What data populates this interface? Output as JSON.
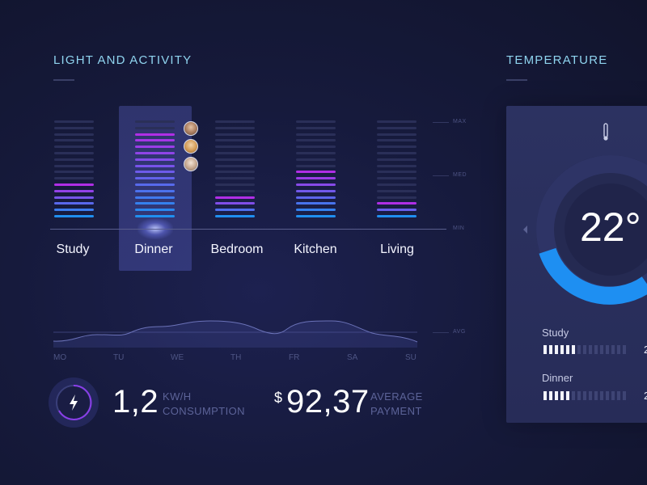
{
  "light_activity": {
    "title": "LIGHT AND ACTIVITY",
    "scale_labels": {
      "max": "MAX",
      "med": "MED",
      "min": "MIN",
      "avg": "AVG"
    },
    "rooms": [
      {
        "label": "Study",
        "active_bars": 6,
        "selected": false
      },
      {
        "label": "Dinner",
        "active_bars": 14,
        "selected": true,
        "occupant_avatars": 3
      },
      {
        "label": "Bedroom",
        "active_bars": 4,
        "selected": false
      },
      {
        "label": "Kitchen",
        "active_bars": 8,
        "selected": false
      },
      {
        "label": "Living",
        "active_bars": 3,
        "selected": false
      }
    ],
    "total_bars_per_room": 16,
    "days": [
      "MO",
      "TU",
      "WE",
      "TH",
      "FR",
      "SA",
      "SU"
    ]
  },
  "consumption": {
    "value": "1,2",
    "unit": "KW/H",
    "label": "CONSUMPTION"
  },
  "payment": {
    "currency": "$",
    "value": "92,37",
    "label_line1": "AVERAGE",
    "label_line2": "PAYMENT"
  },
  "temperature": {
    "title": "TEMPERATURE",
    "current": "22°",
    "rooms": [
      {
        "label": "Study",
        "filled_segments": 6,
        "total_segments": 15,
        "value": "2"
      },
      {
        "label": "Dinner",
        "filled_segments": 5,
        "total_segments": 15,
        "value": "2"
      }
    ]
  },
  "colors": {
    "accent_blue": "#1f8ff0",
    "accent_purple": "#b02ee6",
    "title": "#8fd4ef"
  }
}
